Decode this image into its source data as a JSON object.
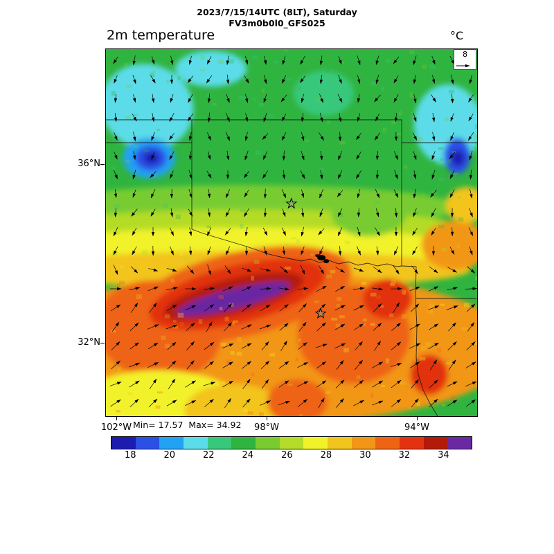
{
  "header": {
    "line1": "2023/7/15/14UTC (8LT), Saturday",
    "line2": "FV3m0b0l0_GFS025"
  },
  "plot": {
    "title": "2m temperature",
    "units_label": "°C",
    "min_max_text": "Min= 17.57  Max= 34.92",
    "ref_arrow_value": "8"
  },
  "axes": {
    "lat_ticks": [
      {
        "label": "36°N",
        "lat": 36
      },
      {
        "label": "32°N",
        "lat": 32
      }
    ],
    "lon_ticks": [
      {
        "label": "102°W",
        "lon": -102
      },
      {
        "label": "98°W",
        "lon": -98
      },
      {
        "label": "94°W",
        "lon": -94
      }
    ]
  },
  "colorbar": {
    "orientation": "horizontal",
    "vmin": 17,
    "vmax": 35.4,
    "colors": [
      "#1c1cb0",
      "#2a50e6",
      "#22a2f2",
      "#5cdce8",
      "#38c87c",
      "#30b440",
      "#78cc30",
      "#b4dc28",
      "#f2f22a",
      "#f2c41e",
      "#f29618",
      "#ee6414",
      "#e23210",
      "#b41a0a",
      "#6a28a2"
    ],
    "tick_labels": [
      "18",
      "20",
      "22",
      "24",
      "26",
      "28",
      "30",
      "32",
      "34"
    ],
    "tick_values": [
      18,
      20,
      22,
      24,
      26,
      28,
      30,
      32,
      34
    ]
  },
  "chart_data": {
    "type": "heatmap",
    "variable": "2m temperature",
    "units": "°C",
    "model": "FV3m0b0l0_GFS025",
    "valid_time": "2023/7/15/14UTC (8LT), Saturday",
    "min": 17.57,
    "max": 34.92,
    "domain": {
      "lon_min": -102.3,
      "lon_max": -92.4,
      "lat_min": 30.4,
      "lat_max": 38.6
    },
    "colorbar_range": [
      18,
      34
    ],
    "background_temp": 24,
    "field_blobs": [
      {
        "lon": -98.5,
        "lat": 35.05,
        "rx": 5.6,
        "ry": 0.5,
        "rot": 0,
        "temp": 25.0
      },
      {
        "lon": -98.4,
        "lat": 34.55,
        "rx": 5.8,
        "ry": 0.45,
        "rot": 0,
        "temp": 26.3
      },
      {
        "lon": -98.5,
        "lat": 34.1,
        "rx": 5.9,
        "ry": 0.5,
        "rot": 0,
        "temp": 27.5
      },
      {
        "lon": -98.5,
        "lat": 33.65,
        "rx": 5.9,
        "ry": 0.42,
        "rot": 0,
        "temp": 28.6
      },
      {
        "lon": -98.0,
        "lat": 31.9,
        "rx": 6.6,
        "ry": 1.7,
        "rot": 0,
        "temp": 29.6
      },
      {
        "lon": -100.9,
        "lat": 32.3,
        "rx": 1.7,
        "ry": 1.1,
        "rot": 10,
        "temp": 30.9
      },
      {
        "lon": -95.7,
        "lat": 32.2,
        "rx": 1.5,
        "ry": 1.1,
        "rot": 0,
        "temp": 30.8
      },
      {
        "lon": -98.7,
        "lat": 33.1,
        "rx": 3.0,
        "ry": 0.95,
        "rot": -13,
        "temp": 31.2
      },
      {
        "lon": -98.8,
        "lat": 33.1,
        "rx": 2.4,
        "ry": 0.65,
        "rot": -14,
        "temp": 32.4
      },
      {
        "lon": -98.9,
        "lat": 33.05,
        "rx": 1.9,
        "ry": 0.4,
        "rot": -14,
        "temp": 33.5
      },
      {
        "lon": -98.9,
        "lat": 33.0,
        "rx": 1.55,
        "ry": 0.22,
        "rot": -14,
        "temp": 34.8
      },
      {
        "lon": -94.8,
        "lat": 33.0,
        "rx": 0.65,
        "ry": 0.45,
        "rot": 0,
        "temp": 32.2
      },
      {
        "lon": -93.7,
        "lat": 31.3,
        "rx": 0.5,
        "ry": 0.45,
        "rot": 0,
        "temp": 31.9
      },
      {
        "lon": -93.0,
        "lat": 34.2,
        "rx": 0.9,
        "ry": 0.55,
        "rot": 0,
        "temp": 29.7
      },
      {
        "lon": -92.7,
        "lat": 35.1,
        "rx": 0.55,
        "ry": 0.4,
        "rot": 0,
        "temp": 28.4
      },
      {
        "lon": -100.9,
        "lat": 30.55,
        "rx": 2.3,
        "ry": 0.85,
        "rot": 0,
        "temp": 27.4
      },
      {
        "lon": -98.9,
        "lat": 30.5,
        "rx": 1.3,
        "ry": 0.6,
        "rot": 0,
        "temp": 28.4
      },
      {
        "lon": -97.2,
        "lat": 30.7,
        "rx": 0.8,
        "ry": 0.5,
        "rot": 0,
        "temp": 30.6
      },
      {
        "lon": -101.2,
        "lat": 37.3,
        "rx": 1.25,
        "ry": 0.95,
        "rot": 20,
        "temp": 21.0
      },
      {
        "lon": -99.5,
        "lat": 38.15,
        "rx": 0.95,
        "ry": 0.4,
        "rot": 0,
        "temp": 21.3
      },
      {
        "lon": -96.5,
        "lat": 37.6,
        "rx": 0.8,
        "ry": 0.5,
        "rot": 0,
        "temp": 22.8
      },
      {
        "lon": -95.3,
        "lat": 34.9,
        "rx": 1.0,
        "ry": 0.5,
        "rot": 0,
        "temp": 24.6
      },
      {
        "lon": -101.15,
        "lat": 36.15,
        "rx": 0.7,
        "ry": 0.45,
        "rot": 0,
        "temp": 20.2
      },
      {
        "lon": -101.1,
        "lat": 36.15,
        "rx": 0.42,
        "ry": 0.28,
        "rot": 0,
        "temp": 18.3
      },
      {
        "lon": -101.08,
        "lat": 36.15,
        "rx": 0.2,
        "ry": 0.13,
        "rot": 0,
        "temp": 17.6
      },
      {
        "lon": -93.2,
        "lat": 36.9,
        "rx": 0.9,
        "ry": 0.9,
        "rot": 0,
        "temp": 21.0
      },
      {
        "lon": -92.95,
        "lat": 36.2,
        "rx": 0.35,
        "ry": 0.4,
        "rot": 0,
        "temp": 18.3
      },
      {
        "lon": -92.93,
        "lat": 36.15,
        "rx": 0.17,
        "ry": 0.18,
        "rot": 0,
        "temp": 17.6
      }
    ],
    "wind": {
      "ref_value": 8,
      "north_regime": "northerly flow, arrows pointing down/southward",
      "south_regime": "south-southwesterly flow, arrows pointing up/northeastward",
      "transition_lat": 33.8
    },
    "markers": [
      {
        "name": "station-star",
        "lon": -97.36,
        "lat": 35.13
      },
      {
        "name": "station-star",
        "lon": -96.58,
        "lat": 32.67
      }
    ],
    "lakes": [
      {
        "name": "lake",
        "lon": -96.56,
        "lat": 33.92
      }
    ]
  }
}
